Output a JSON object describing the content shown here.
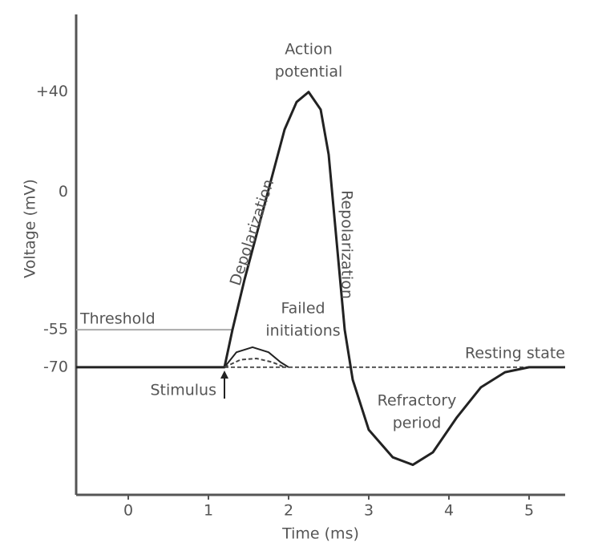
{
  "chart_data": {
    "type": "line",
    "xlabel": "Time (ms)",
    "ylabel": "Voltage (mV)",
    "xlim": [
      -0.65,
      5.45
    ],
    "ylim": [
      -121,
      71
    ],
    "xticks": [
      0,
      1,
      2,
      3,
      4,
      5
    ],
    "yticks": [
      {
        "value": 40,
        "label": "+40"
      },
      0,
      -55,
      -70
    ],
    "threshold": {
      "label": "Threshold",
      "value": -55,
      "x": [
        -0.65,
        1.3
      ],
      "color": "#aaaaaa"
    },
    "resting": {
      "label": "Resting state",
      "value": -70,
      "x": [
        1.2,
        5.45
      ],
      "color": "#555555"
    },
    "stimulus": {
      "label": "Stimulus",
      "x": 1.2
    },
    "series": [
      {
        "color": "#222222",
        "dashed": false,
        "x": [
          -0.65,
          1.2,
          1.3,
          1.45,
          1.7,
          1.95,
          2.1,
          2.25,
          2.4,
          2.5,
          2.6,
          2.7,
          2.8,
          3.0,
          3.3,
          3.55,
          3.8,
          4.1,
          4.4,
          4.7,
          5.0,
          5.45
        ],
        "values": [
          -70,
          -70,
          -55,
          -35,
          -5,
          25,
          36,
          40,
          33,
          15,
          -20,
          -55,
          -75,
          -95,
          -106,
          -109,
          -104,
          -90,
          -78,
          -72,
          -70,
          -70
        ]
      },
      {
        "color": "#222222",
        "dashed": false,
        "x": [
          1.2,
          1.35,
          1.55,
          1.75,
          1.9,
          2.0
        ],
        "values": [
          -70,
          -64,
          -62,
          -64,
          -68,
          -70
        ]
      },
      {
        "color": "#444444",
        "dashed": true,
        "x": [
          1.2,
          1.4,
          1.6,
          1.8,
          1.95
        ],
        "values": [
          -70,
          -67,
          -66.5,
          -68,
          -70
        ]
      }
    ],
    "annotations": [
      {
        "lines": [
          "Action",
          "potential"
        ]
      },
      {
        "lines": [
          "Depolarization"
        ]
      },
      {
        "lines": [
          "Repolarization"
        ]
      },
      {
        "lines": [
          "Failed",
          "initiations"
        ]
      },
      {
        "lines": [
          "Refractory",
          "period"
        ]
      }
    ]
  }
}
